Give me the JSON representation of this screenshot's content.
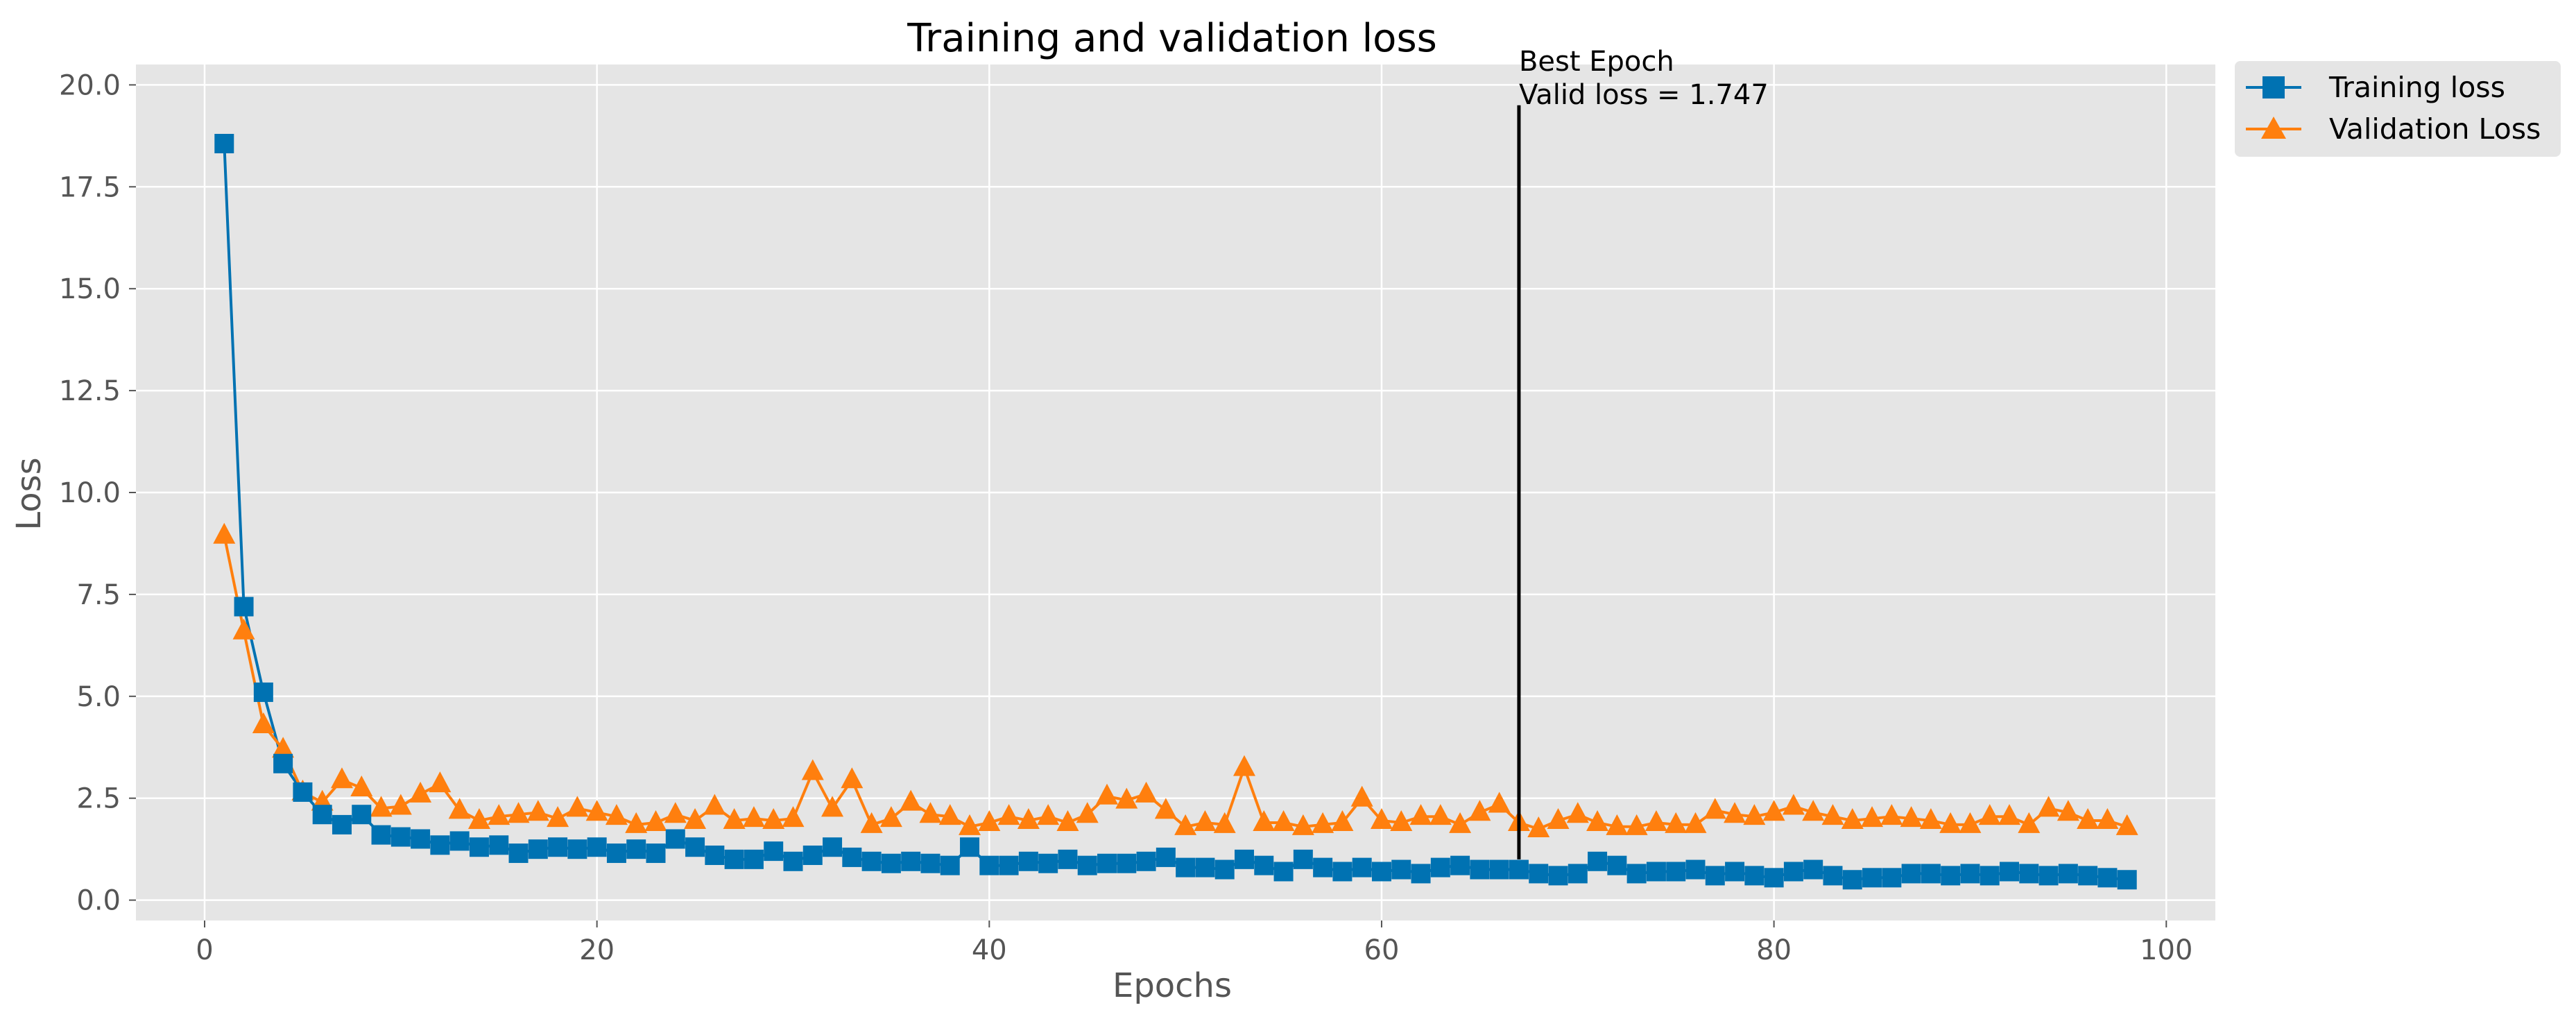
{
  "chart_data": {
    "type": "line",
    "title": "Training and validation loss",
    "xlabel": "Epochs",
    "ylabel": "Loss",
    "xlim": [
      -3.5,
      102.5
    ],
    "ylim": [
      -0.5,
      20.5
    ],
    "xticks": [
      0,
      20,
      40,
      60,
      80,
      100
    ],
    "yticks": [
      0.0,
      2.5,
      5.0,
      7.5,
      10.0,
      12.5,
      15.0,
      17.5,
      20.0
    ],
    "ytick_labels": [
      "0.0",
      "2.5",
      "5.0",
      "7.5",
      "10.0",
      "12.5",
      "15.0",
      "17.5",
      "20.0"
    ],
    "grid": true,
    "legend_position": "outside-top-right",
    "colors": {
      "background": "#e5e5e5",
      "grid": "#ffffff",
      "training": "#0072b2",
      "validation": "#ff7f0e",
      "best_line": "#000000"
    },
    "series": [
      {
        "name": "Training loss",
        "marker": "square",
        "values": [
          18.56,
          7.2,
          5.1,
          3.35,
          2.65,
          2.1,
          1.85,
          2.1,
          1.6,
          1.55,
          1.5,
          1.35,
          1.45,
          1.3,
          1.35,
          1.15,
          1.25,
          1.3,
          1.25,
          1.3,
          1.15,
          1.25,
          1.15,
          1.5,
          1.3,
          1.1,
          1.0,
          1.0,
          1.2,
          0.95,
          1.1,
          1.3,
          1.05,
          0.95,
          0.9,
          0.95,
          0.9,
          0.85,
          1.3,
          0.85,
          0.85,
          0.95,
          0.9,
          1.0,
          0.85,
          0.9,
          0.9,
          0.95,
          1.05,
          0.8,
          0.8,
          0.75,
          1.0,
          0.85,
          0.7,
          1.0,
          0.8,
          0.7,
          0.8,
          0.7,
          0.75,
          0.65,
          0.8,
          0.85,
          0.75,
          0.75,
          0.75,
          0.65,
          0.6,
          0.65,
          0.95,
          0.85,
          0.65,
          0.7,
          0.7,
          0.75,
          0.6,
          0.7,
          0.6,
          0.55,
          0.7,
          0.75,
          0.6,
          0.5,
          0.55,
          0.55,
          0.65,
          0.65,
          0.6,
          0.65,
          0.6,
          0.7,
          0.65,
          0.6,
          0.65,
          0.6,
          0.55,
          0.5
        ]
      },
      {
        "name": "Validation Loss",
        "marker": "triangle",
        "values": [
          8.95,
          6.6,
          4.3,
          3.7,
          2.65,
          2.4,
          2.95,
          2.75,
          2.25,
          2.3,
          2.6,
          2.85,
          2.2,
          1.95,
          2.05,
          2.1,
          2.15,
          2.0,
          2.25,
          2.15,
          2.05,
          1.85,
          1.9,
          2.1,
          1.95,
          2.3,
          1.95,
          2.0,
          1.95,
          2.0,
          3.15,
          2.25,
          2.95,
          1.85,
          2.0,
          2.4,
          2.1,
          2.05,
          1.8,
          1.9,
          2.05,
          1.95,
          2.05,
          1.9,
          2.1,
          2.55,
          2.45,
          2.6,
          2.2,
          1.8,
          1.9,
          1.85,
          3.25,
          1.9,
          1.9,
          1.8,
          1.85,
          1.9,
          2.5,
          1.95,
          1.9,
          2.05,
          2.05,
          1.85,
          2.15,
          2.35,
          1.9,
          1.747,
          1.95,
          2.1,
          1.9,
          1.8,
          1.8,
          1.9,
          1.85,
          1.85,
          2.2,
          2.1,
          2.05,
          2.15,
          2.3,
          2.15,
          2.05,
          1.95,
          2.0,
          2.05,
          2.0,
          1.95,
          1.85,
          1.85,
          2.05,
          2.05,
          1.85,
          2.25,
          2.15,
          1.95,
          1.95,
          1.8
        ]
      }
    ],
    "best_epoch": {
      "epoch": 67,
      "line_top": 19.5,
      "line_bottom": 1.0,
      "label_line1": "Best Epoch",
      "label_line2": "Valid loss = 1.747"
    }
  }
}
